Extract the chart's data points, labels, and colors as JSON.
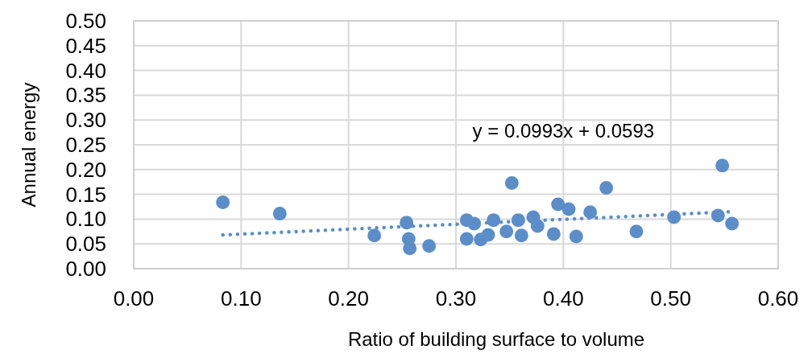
{
  "chart_data": {
    "type": "scatter",
    "xlabel": "Ratio of building surface to volume",
    "ylabel": "Annual energy",
    "annotations": [
      "y = 0.0993x + 0.0593"
    ],
    "xlim": [
      0,
      0.6
    ],
    "xticks": [
      {
        "value": 0,
        "label": "0.00"
      },
      {
        "value": 0.1,
        "label": "0.10"
      },
      {
        "value": 0.2,
        "label": "0.20"
      },
      {
        "value": 0.3,
        "label": "0.30"
      },
      {
        "value": 0.4,
        "label": "0.40"
      },
      {
        "value": 0.5,
        "label": "0.50"
      },
      {
        "value": 0.6,
        "label": "0.60"
      }
    ],
    "ylim": [
      0,
      0.5
    ],
    "yticks": [
      {
        "value": 0,
        "label": "0.00"
      },
      {
        "value": 0.05,
        "label": "0.05"
      },
      {
        "value": 0.1,
        "label": "0.10"
      },
      {
        "value": 0.15,
        "label": "0.15"
      },
      {
        "value": 0.2,
        "label": "0.20"
      },
      {
        "value": 0.25,
        "label": "0.25"
      },
      {
        "value": 0.3,
        "label": "0.30"
      },
      {
        "value": 0.35,
        "label": "0.35"
      },
      {
        "value": 0.4,
        "label": "0.40"
      },
      {
        "value": 0.45,
        "label": "0.45"
      },
      {
        "value": 0.5,
        "label": "0.50"
      }
    ],
    "grid": true,
    "series": [
      {
        "color": "#5b8ec9",
        "marker": "circle",
        "x": [
          0.083,
          0.136,
          0.224,
          0.254,
          0.256,
          0.257,
          0.275,
          0.31,
          0.317,
          0.31,
          0.323,
          0.33,
          0.335,
          0.347,
          0.352,
          0.358,
          0.361,
          0.372,
          0.376,
          0.391,
          0.395,
          0.405,
          0.412,
          0.425,
          0.44,
          0.468,
          0.503,
          0.544,
          0.548,
          0.557
        ],
        "values": [
          0.134,
          0.111,
          0.067,
          0.093,
          0.06,
          0.041,
          0.046,
          0.098,
          0.091,
          0.06,
          0.059,
          0.068,
          0.098,
          0.075,
          0.173,
          0.098,
          0.067,
          0.104,
          0.086,
          0.07,
          0.13,
          0.12,
          0.065,
          0.114,
          0.163,
          0.075,
          0.104,
          0.107,
          0.208,
          0.091
        ]
      },
      {
        "type": "line",
        "color": "#5b8ec9",
        "line_style": "dotted",
        "x": [
          0.083,
          0.557
        ],
        "values": [
          0.068,
          0.115
        ]
      }
    ]
  }
}
